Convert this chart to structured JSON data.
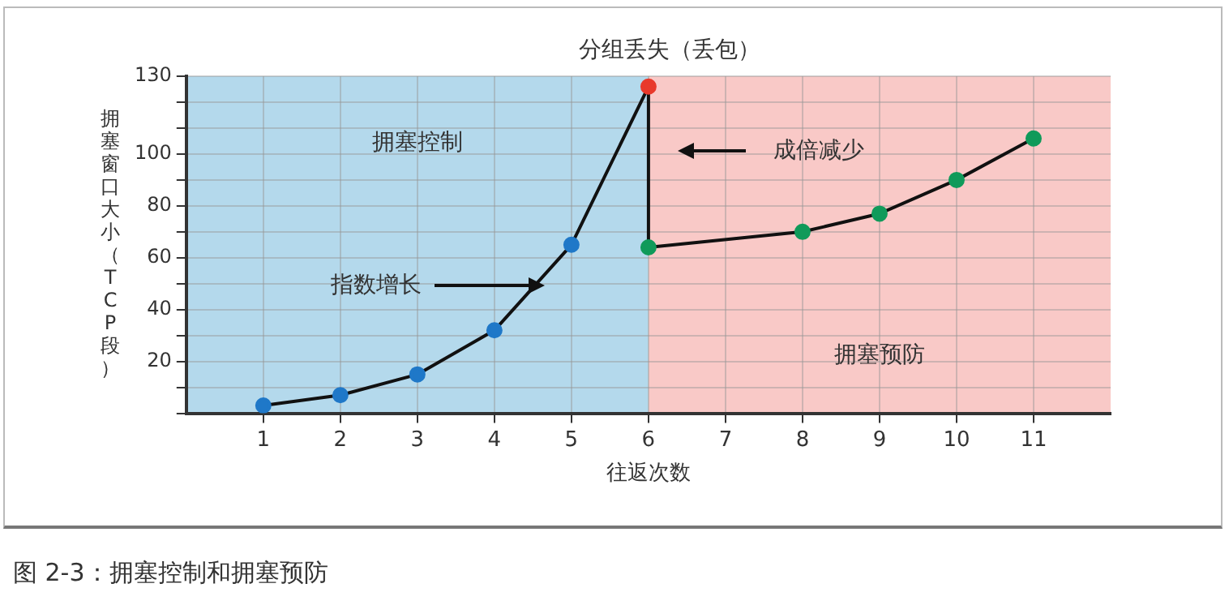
{
  "chart_data": {
    "type": "line",
    "xlabel": "往返次数",
    "ylabel": "拥塞窗口大小（TCP段）",
    "x": [
      1,
      2,
      3,
      4,
      5,
      6,
      6,
      8,
      9,
      10,
      11
    ],
    "series": [
      {
        "color": "#111111",
        "colors": [
          "#1f78c8",
          "#1f78c8",
          "#1f78c8",
          "#1f78c8",
          "#1f78c8",
          "#e8392b",
          "#109a5a",
          "#109a5a",
          "#109a5a",
          "#109a5a",
          "#109a5a"
        ],
        "values": [
          3,
          7,
          15,
          32,
          65,
          126,
          64,
          70,
          77,
          90,
          106
        ]
      }
    ],
    "xlim": [
      0,
      12
    ],
    "xticks": [
      1,
      2,
      3,
      4,
      5,
      6,
      7,
      8,
      9,
      10,
      11
    ],
    "ylim": [
      0,
      130
    ],
    "yticks": [
      {
        "value": 0,
        "label": null
      },
      {
        "value": 10,
        "label": null
      },
      20,
      {
        "value": 30,
        "label": null
      },
      40,
      {
        "value": 50,
        "label": null
      },
      60,
      {
        "value": 70,
        "label": null
      },
      80,
      {
        "value": 90,
        "label": null
      },
      100,
      {
        "value": 110,
        "label": null
      },
      {
        "value": 120,
        "label": null
      },
      130
    ],
    "bands": [
      {
        "axis": "x",
        "from": 0,
        "to": 6,
        "label": "拥塞控制",
        "color": "#b4d9ec"
      },
      {
        "axis": "x",
        "from": 6,
        "to": 12,
        "label": "拥塞预防",
        "color": "#f9c9c7"
      }
    ],
    "annotations": [
      "分组丢失（丢包）",
      "指数增长",
      "成倍减少",
      "图 2-3：拥塞控制和拥塞预防"
    ],
    "grid": true,
    "legend": false,
    "marker": "circle",
    "line_style": "solid"
  }
}
